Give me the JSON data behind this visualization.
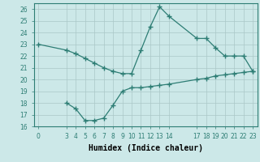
{
  "line1_x": [
    0,
    3,
    4,
    5,
    6,
    7,
    8,
    9,
    10,
    11,
    12,
    13,
    14,
    17,
    18,
    19,
    20,
    21,
    22,
    23
  ],
  "line1_y": [
    23.0,
    22.5,
    22.2,
    21.8,
    21.4,
    21.0,
    20.7,
    20.5,
    20.5,
    22.5,
    24.5,
    26.2,
    25.4,
    23.5,
    23.5,
    22.7,
    22.0,
    22.0,
    22.0,
    20.7
  ],
  "line2_x": [
    3,
    4,
    5,
    6,
    7,
    8,
    9,
    10,
    11,
    12,
    13,
    14,
    17,
    18,
    19,
    20,
    21,
    22,
    23
  ],
  "line2_y": [
    18.0,
    17.5,
    16.5,
    16.5,
    16.7,
    17.8,
    19.0,
    19.3,
    19.3,
    19.4,
    19.5,
    19.6,
    20.0,
    20.1,
    20.3,
    20.4,
    20.5,
    20.6,
    20.7
  ],
  "line_color": "#2d7d74",
  "bg_color": "#cce8e8",
  "grid_color": "#aac8c8",
  "xlabel": "Humidex (Indice chaleur)",
  "ylim": [
    16,
    26.5
  ],
  "xlim": [
    -0.5,
    23.5
  ],
  "yticks": [
    16,
    17,
    18,
    19,
    20,
    21,
    22,
    23,
    24,
    25,
    26
  ],
  "xticks": [
    0,
    3,
    4,
    5,
    6,
    7,
    8,
    9,
    10,
    11,
    12,
    13,
    14,
    17,
    18,
    19,
    20,
    21,
    22,
    23
  ],
  "tick_fontsize": 5.5,
  "xlabel_fontsize": 7.0,
  "marker": "+",
  "markersize": 4.0,
  "linewidth": 0.9
}
